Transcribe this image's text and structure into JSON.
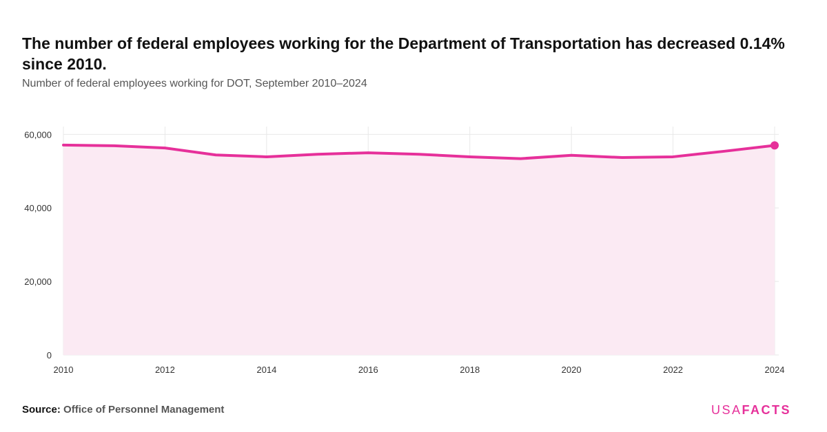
{
  "title": "The number of federal employees working for the Department of Transportation has decreased 0.14% since 2010.",
  "subtitle": "Number of federal employees working for DOT, September 2010–2024",
  "source": {
    "label": "Source:",
    "name": "Office of Personnel Management"
  },
  "brand": {
    "usa": "USA",
    "facts": "FACTS"
  },
  "colors": {
    "accent": "#e6309a",
    "area_fill": "#fbeaf3",
    "grid": "#e8e8e8"
  },
  "chart_data": {
    "type": "area",
    "title": "The number of federal employees working for the Department of Transportation has decreased 0.14% since 2010.",
    "subtitle": "Number of federal employees working for DOT, September 2010–2024",
    "xlabel": "",
    "ylabel": "",
    "x": [
      2010,
      2011,
      2012,
      2013,
      2014,
      2015,
      2016,
      2017,
      2018,
      2019,
      2020,
      2021,
      2022,
      2023,
      2024
    ],
    "series": [
      {
        "values": [
          57100,
          56900,
          56300,
          54400,
          53900,
          54600,
          55000,
          54600,
          53900,
          53400,
          54300,
          53700,
          53900,
          55400,
          57000
        ]
      }
    ],
    "x_ticks": [
      "2010",
      "2012",
      "2014",
      "2016",
      "2018",
      "2020",
      "2022",
      "2024"
    ],
    "y_ticks": [
      "0",
      "20,000",
      "40,000",
      "60,000"
    ],
    "xlim": [
      2010,
      2024
    ],
    "ylim": [
      0,
      61000
    ],
    "grid": true,
    "legend": "none",
    "end_marker": true
  }
}
